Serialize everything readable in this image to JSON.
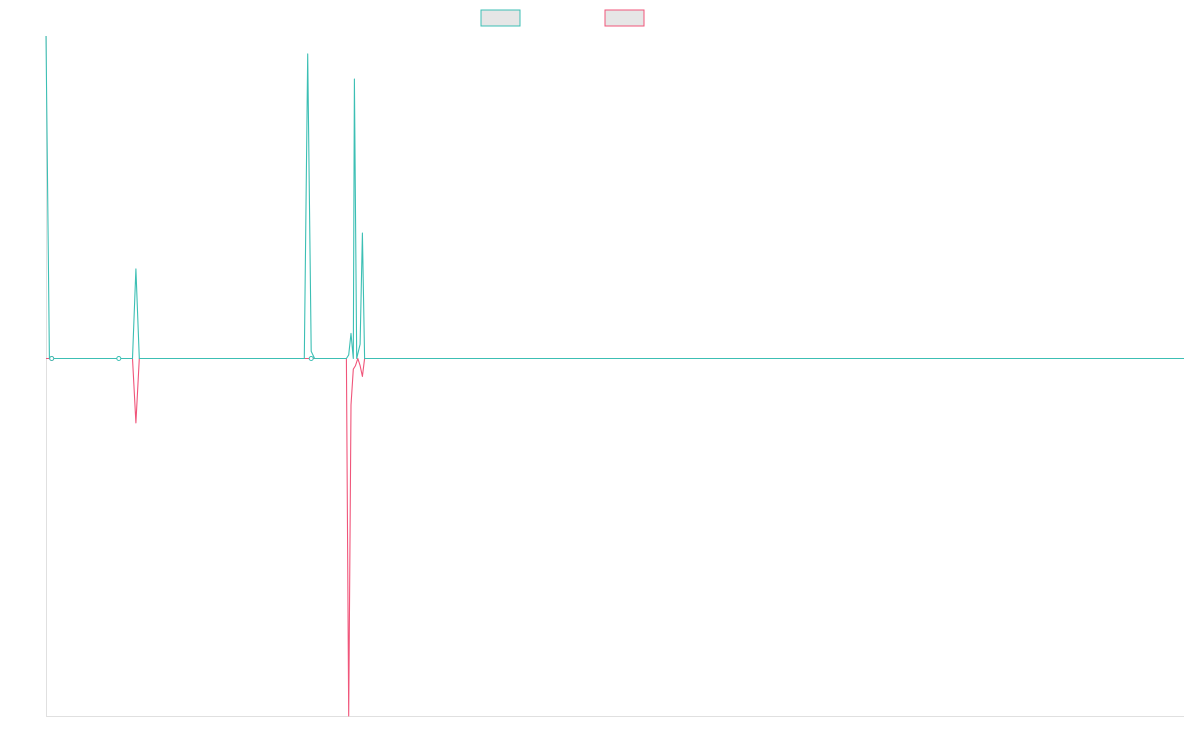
{
  "colors": {
    "series_a": "#3cbfb4",
    "series_b": "#f0557a",
    "legend_fill": "#e6e6e6",
    "axis": "#e0e0e0",
    "background": "#ffffff"
  },
  "chart_data": {
    "type": "line",
    "title": "",
    "xlabel": "",
    "ylabel": "",
    "grid": false,
    "legend": "top-center",
    "xlim": [
      0,
      100
    ],
    "ylim": [
      -1.0,
      0.9
    ],
    "series": [
      {
        "key": "a",
        "points": [
          [
            0,
            0.9
          ],
          [
            0.3,
            0.0
          ],
          [
            6.4,
            0.0
          ],
          [
            7.6,
            0.0
          ],
          [
            7.9,
            0.25
          ],
          [
            8.2,
            0.0
          ],
          [
            22.7,
            0.0
          ],
          [
            23.0,
            0.85
          ],
          [
            23.3,
            0.02
          ],
          [
            23.6,
            0.0
          ],
          [
            26.4,
            0.0
          ],
          [
            26.6,
            0.01
          ],
          [
            26.8,
            0.07
          ],
          [
            27.0,
            0.0
          ],
          [
            27.1,
            0.78
          ],
          [
            27.3,
            0.0
          ],
          [
            27.6,
            0.04
          ],
          [
            27.8,
            0.35
          ],
          [
            28.0,
            0.0
          ],
          [
            100,
            0.0
          ]
        ],
        "markers": [
          [
            0.5,
            0.0
          ],
          [
            6.4,
            0.0
          ],
          [
            23.3,
            0.0
          ]
        ]
      },
      {
        "key": "b",
        "points": [
          [
            0,
            0.0
          ],
          [
            7.6,
            0.0
          ],
          [
            7.9,
            -0.18
          ],
          [
            8.2,
            0.0
          ],
          [
            26.4,
            0.0
          ],
          [
            26.6,
            -1.0
          ],
          [
            26.8,
            -0.13
          ],
          [
            27.0,
            -0.03
          ],
          [
            27.2,
            -0.02
          ],
          [
            27.4,
            0.0
          ],
          [
            27.6,
            -0.02
          ],
          [
            27.8,
            -0.05
          ],
          [
            28.0,
            0.0
          ],
          [
            100,
            0.0
          ]
        ],
        "markers": [
          [
            0.5,
            0.0
          ]
        ]
      }
    ]
  }
}
